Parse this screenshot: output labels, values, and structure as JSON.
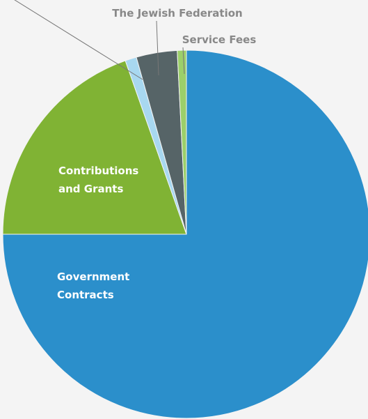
{
  "chart_data": {
    "type": "pie",
    "title": "",
    "start_angle_deg": 0,
    "direction": "clockwise",
    "slices": [
      {
        "label": "Government Contracts",
        "value": 75.0,
        "color": "#2b8fcb",
        "label_color": "#ffffff",
        "label_lines": [
          "Government",
          "Contracts"
        ]
      },
      {
        "label": "Contributions and Grants",
        "value": 19.6,
        "color": "#80b334",
        "label_color": "#ffffff",
        "label_lines": [
          "Contributions",
          "and Grants"
        ]
      },
      {
        "label": "",
        "value": 1.0,
        "color": "#a8d8f0",
        "label_color": "#707070",
        "label_lines": []
      },
      {
        "label": "The Jewish Federation",
        "value": 3.6,
        "color": "#566467",
        "label_color": "#888888",
        "label_lines": [
          "The Jewish Federation"
        ]
      },
      {
        "label": "Service Fees",
        "value": 0.8,
        "color": "#9ccf6a",
        "label_color": "#888888",
        "label_lines": [
          "Service Fees"
        ]
      }
    ]
  }
}
